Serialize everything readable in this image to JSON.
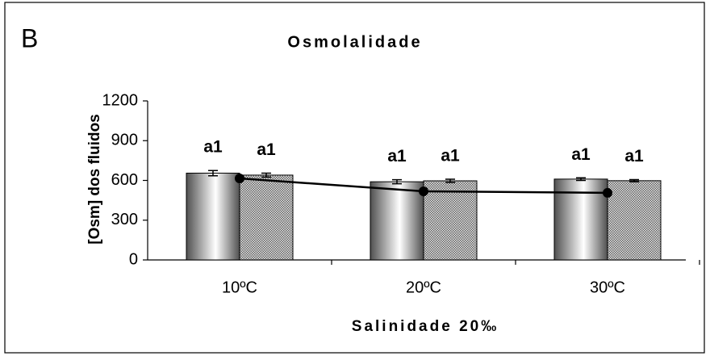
{
  "chart_data": {
    "type": "bar",
    "panel": "B",
    "title": "Osmolalidade",
    "y_label": "[Osm] dos fluidos",
    "x_label": "Salinidade 20‰",
    "categories": [
      "10ºC",
      "20ºC",
      "30ºC"
    ],
    "series": [
      {
        "type": "bar",
        "style": "gradient",
        "color": "#505050",
        "values": [
          655,
          590,
          610
        ],
        "errors": [
          20,
          15,
          10
        ],
        "labels": [
          "a1",
          "a1",
          "a1"
        ]
      },
      {
        "type": "bar",
        "style": "hatch",
        "color": "#606060",
        "values": [
          640,
          597,
          598
        ],
        "errors": [
          15,
          12,
          8
        ],
        "labels": [
          "a1",
          "a1",
          "a1"
        ]
      },
      {
        "type": "line",
        "color": "#000000",
        "values": [
          615,
          518,
          506
        ]
      }
    ],
    "ylim": [
      0,
      1200
    ],
    "yticks": [
      0,
      300,
      600,
      900,
      1200
    ],
    "grid": false
  }
}
